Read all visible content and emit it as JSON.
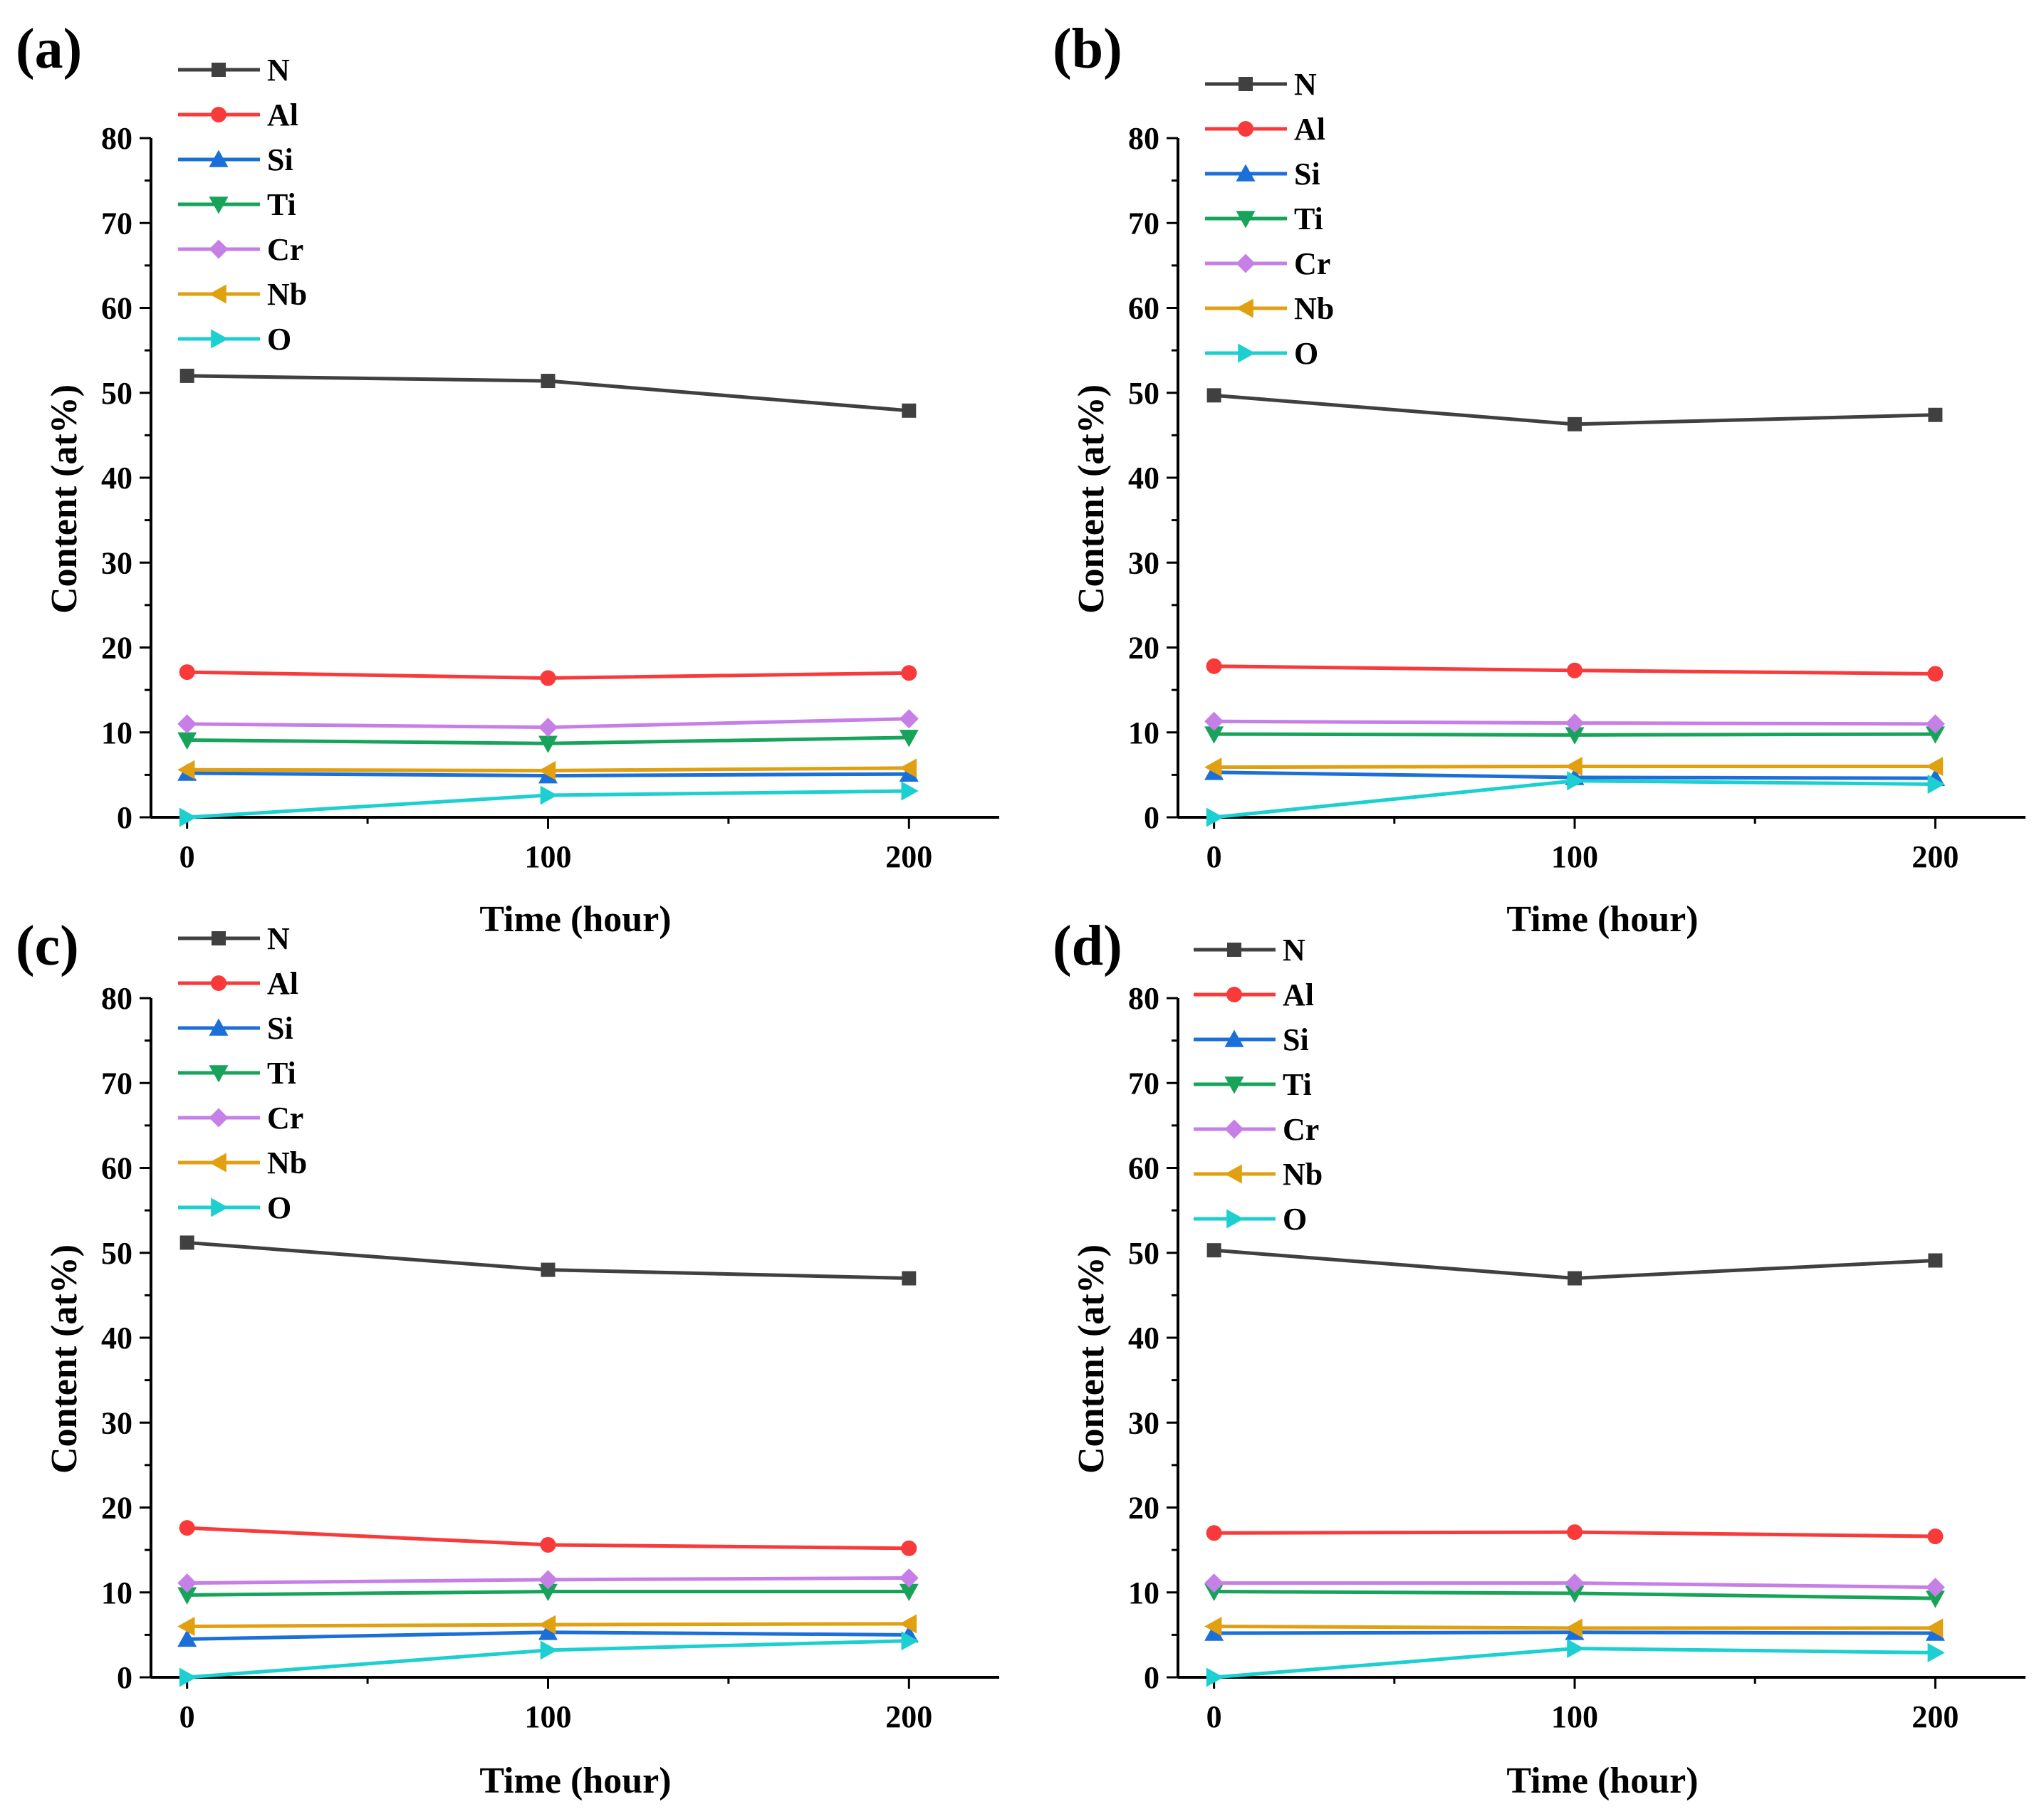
{
  "chart_data": [
    {
      "type": "line",
      "panel_label": "(a)",
      "xlabel": "Time (hour)",
      "ylabel": "Content (at%)",
      "x": [
        0,
        100,
        200
      ],
      "xticks": [
        "0",
        "100",
        "200"
      ],
      "xlim": [
        -10,
        225
      ],
      "ylim": [
        0,
        80
      ],
      "yticks": [
        "0",
        "10",
        "20",
        "30",
        "40",
        "50",
        "60",
        "70",
        "80"
      ],
      "legend_position": "top-left",
      "series": [
        {
          "name": "N",
          "marker": "square",
          "color": "#404040",
          "values": [
            52.0,
            51.4,
            47.9
          ]
        },
        {
          "name": "Al",
          "marker": "circle",
          "color": "#f83a3a",
          "values": [
            17.1,
            16.4,
            17.0
          ]
        },
        {
          "name": "Si",
          "marker": "triangle-up",
          "color": "#1b6fd8",
          "values": [
            5.2,
            4.9,
            5.1
          ]
        },
        {
          "name": "Ti",
          "marker": "triangle-down",
          "color": "#17a35a",
          "values": [
            9.1,
            8.7,
            9.4
          ]
        },
        {
          "name": "Cr",
          "marker": "diamond",
          "color": "#c77fe8",
          "values": [
            11.0,
            10.6,
            11.6
          ]
        },
        {
          "name": "Nb",
          "marker": "triangle-left",
          "color": "#e0a010",
          "values": [
            5.6,
            5.5,
            5.8
          ]
        },
        {
          "name": "O",
          "marker": "triangle-right",
          "color": "#1ccfd0",
          "values": [
            0.0,
            2.6,
            3.1
          ]
        }
      ]
    },
    {
      "type": "line",
      "panel_label": "(b)",
      "xlabel": "Time (hour)",
      "ylabel": "Content (at%)",
      "x": [
        0,
        100,
        200
      ],
      "xticks": [
        "0",
        "100",
        "200"
      ],
      "xlim": [
        -10,
        225
      ],
      "ylim": [
        0,
        80
      ],
      "yticks": [
        "0",
        "10",
        "20",
        "30",
        "40",
        "50",
        "60",
        "70",
        "80"
      ],
      "legend_position": "top-left",
      "series": [
        {
          "name": "N",
          "marker": "square",
          "color": "#404040",
          "values": [
            49.7,
            46.3,
            47.4
          ]
        },
        {
          "name": "Al",
          "marker": "circle",
          "color": "#f83a3a",
          "values": [
            17.8,
            17.3,
            16.9
          ]
        },
        {
          "name": "Si",
          "marker": "triangle-up",
          "color": "#1b6fd8",
          "values": [
            5.3,
            4.7,
            4.6
          ]
        },
        {
          "name": "Ti",
          "marker": "triangle-down",
          "color": "#17a35a",
          "values": [
            9.8,
            9.7,
            9.8
          ]
        },
        {
          "name": "Cr",
          "marker": "diamond",
          "color": "#c77fe8",
          "values": [
            11.3,
            11.1,
            11.0
          ]
        },
        {
          "name": "Nb",
          "marker": "triangle-left",
          "color": "#e0a010",
          "values": [
            5.9,
            6.0,
            6.0
          ]
        },
        {
          "name": "O",
          "marker": "triangle-right",
          "color": "#1ccfd0",
          "values": [
            0.0,
            4.3,
            3.9
          ]
        }
      ]
    },
    {
      "type": "line",
      "panel_label": "(c)",
      "xlabel": "Time (hour)",
      "ylabel": "Content (at%)",
      "x": [
        0,
        100,
        200
      ],
      "xticks": [
        "0",
        "100",
        "200"
      ],
      "xlim": [
        -10,
        225
      ],
      "ylim": [
        0,
        80
      ],
      "yticks": [
        "0",
        "10",
        "20",
        "30",
        "40",
        "50",
        "60",
        "70",
        "80"
      ],
      "legend_position": "top-left",
      "series": [
        {
          "name": "N",
          "marker": "square",
          "color": "#404040",
          "values": [
            51.2,
            48.0,
            47.0
          ]
        },
        {
          "name": "Al",
          "marker": "circle",
          "color": "#f83a3a",
          "values": [
            17.6,
            15.6,
            15.2
          ]
        },
        {
          "name": "Si",
          "marker": "triangle-up",
          "color": "#1b6fd8",
          "values": [
            4.5,
            5.3,
            5.0
          ]
        },
        {
          "name": "Ti",
          "marker": "triangle-down",
          "color": "#17a35a",
          "values": [
            9.7,
            10.1,
            10.1
          ]
        },
        {
          "name": "Cr",
          "marker": "diamond",
          "color": "#c77fe8",
          "values": [
            11.1,
            11.5,
            11.7
          ]
        },
        {
          "name": "Nb",
          "marker": "triangle-left",
          "color": "#e0a010",
          "values": [
            6.0,
            6.2,
            6.3
          ]
        },
        {
          "name": "O",
          "marker": "triangle-right",
          "color": "#1ccfd0",
          "values": [
            0.0,
            3.2,
            4.3
          ]
        }
      ]
    },
    {
      "type": "line",
      "panel_label": "(d)",
      "xlabel": "Time (hour)",
      "ylabel": "Content (at%)",
      "x": [
        0,
        100,
        200
      ],
      "xticks": [
        "0",
        "100",
        "200"
      ],
      "xlim": [
        -10,
        225
      ],
      "ylim": [
        0,
        80
      ],
      "yticks": [
        "0",
        "10",
        "20",
        "30",
        "40",
        "50",
        "60",
        "70",
        "80"
      ],
      "legend_position": "top-left",
      "series": [
        {
          "name": "N",
          "marker": "square",
          "color": "#404040",
          "values": [
            50.3,
            47.0,
            49.1
          ]
        },
        {
          "name": "Al",
          "marker": "circle",
          "color": "#f83a3a",
          "values": [
            17.0,
            17.1,
            16.6
          ]
        },
        {
          "name": "Si",
          "marker": "triangle-up",
          "color": "#1b6fd8",
          "values": [
            5.2,
            5.3,
            5.2
          ]
        },
        {
          "name": "Ti",
          "marker": "triangle-down",
          "color": "#17a35a",
          "values": [
            10.1,
            9.9,
            9.3
          ]
        },
        {
          "name": "Cr",
          "marker": "diamond",
          "color": "#c77fe8",
          "values": [
            11.1,
            11.1,
            10.6
          ]
        },
        {
          "name": "Nb",
          "marker": "triangle-left",
          "color": "#e0a010",
          "values": [
            6.0,
            5.8,
            5.8
          ]
        },
        {
          "name": "O",
          "marker": "triangle-right",
          "color": "#1ccfd0",
          "values": [
            0.0,
            3.4,
            2.9
          ]
        }
      ]
    }
  ]
}
